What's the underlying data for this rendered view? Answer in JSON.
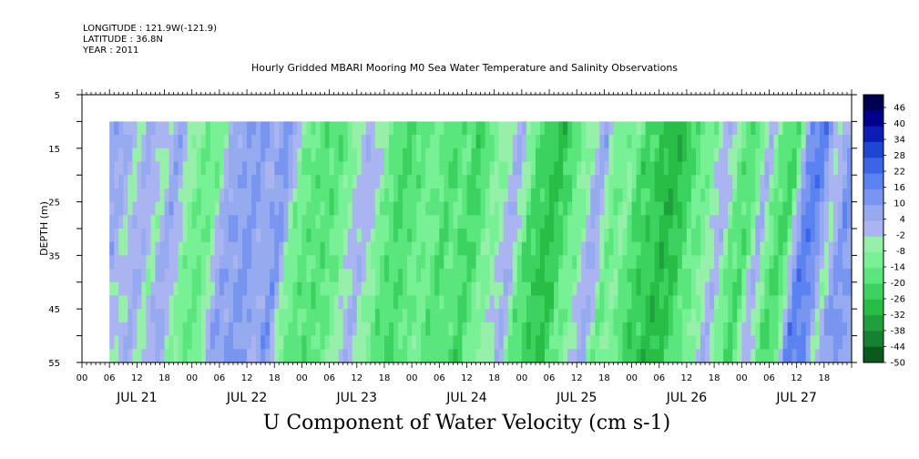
{
  "header": {
    "longitude": "LONGITUDE : 121.9W(-121.9)",
    "latitude": "LATITUDE : 36.8N",
    "year": "YEAR : 2011"
  },
  "chart_data": {
    "type": "heatmap",
    "title": "Hourly Gridded MBARI Mooring M0 Sea Water Temperature and Salinity Observations",
    "variable_label": "U Component of Water Velocity (cm s-1)",
    "ylabel": "DEPTH (m)",
    "ylim": [
      5,
      55
    ],
    "y_inverted": true,
    "y_ticks": [
      5,
      15,
      25,
      35,
      45,
      55
    ],
    "x_hour_ticks": [
      "00",
      "06",
      "12",
      "18",
      "00",
      "06",
      "12",
      "18",
      "00",
      "06",
      "12",
      "18",
      "00",
      "06",
      "12",
      "18",
      "00",
      "06",
      "12",
      "18",
      "00",
      "06",
      "12",
      "18",
      "00",
      "06",
      "12",
      "18"
    ],
    "x_date_labels": [
      "JUL 21",
      "JUL 22",
      "JUL 23",
      "JUL 24",
      "JUL 25",
      "JUL 26",
      "JUL 27"
    ],
    "data_start": "JUL 21 06:00",
    "data_end": "JUL 27 23:00",
    "data_depth_range": [
      10,
      55
    ],
    "colorbar": {
      "labels": [
        "46",
        "40",
        "34",
        "28",
        "22",
        "16",
        "10",
        "4",
        "-2",
        "-8",
        "-14",
        "-20",
        "-26",
        "-32",
        "-38",
        "-44",
        "-50"
      ],
      "range": [
        -50,
        52
      ],
      "colors": [
        "#000050",
        "#00008c",
        "#0a1eb4",
        "#1e46d2",
        "#3c64e6",
        "#5a82f0",
        "#7896f0",
        "#96aaf0",
        "#aab4f0",
        "#96f0aa",
        "#78f096",
        "#5ae67d",
        "#3cd25f",
        "#28be46",
        "#1ea03c",
        "#148232",
        "#0a5a1e"
      ]
    },
    "velocity_profile": {
      "description": "U velocity (cm s-1) per day-hour column, roughly depth-uniform bands",
      "hours": [
        6,
        9,
        12,
        15,
        18,
        21,
        24,
        27,
        30,
        33,
        36,
        39,
        42,
        45,
        48,
        51,
        54,
        57,
        60,
        63,
        66,
        69,
        72,
        75,
        78,
        81,
        84,
        87,
        90,
        93,
        96,
        99,
        102,
        105,
        108,
        111,
        114,
        117,
        120,
        123,
        126,
        129,
        132,
        135,
        138,
        141,
        144,
        147,
        150,
        153,
        156,
        159,
        162,
        165,
        168
      ],
      "values": [
        6,
        -4,
        6,
        -6,
        8,
        -6,
        -14,
        -12,
        8,
        8,
        12,
        4,
        14,
        -10,
        -16,
        -18,
        -16,
        -6,
        4,
        -6,
        -18,
        -20,
        -14,
        -12,
        -20,
        -14,
        -24,
        -10,
        -6,
        6,
        -18,
        -24,
        -28,
        -14,
        -8,
        8,
        -14,
        -8,
        -22,
        -24,
        -30,
        -26,
        -14,
        -10,
        4,
        -14,
        -20,
        6,
        -18,
        -20,
        18,
        18,
        -6,
        14,
        8
      ]
    }
  }
}
